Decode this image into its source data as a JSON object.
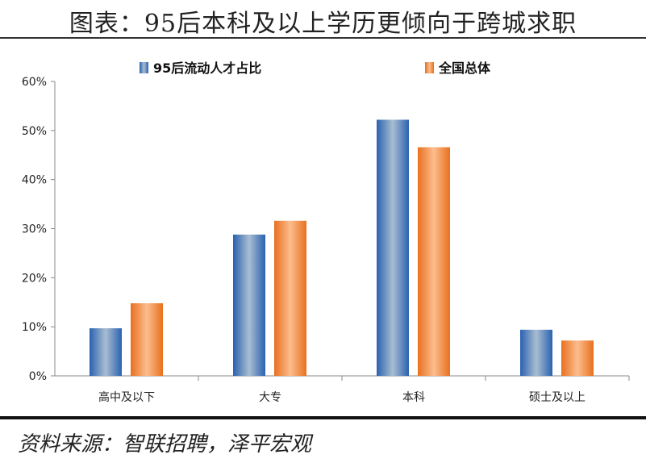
{
  "title": "图表：95后本科及以上学历更倾向于跨城求职",
  "source": "资料来源：智联招聘，泽平宏观",
  "chart_data": {
    "type": "bar",
    "categories": [
      "高中及以下",
      "大专",
      "本科",
      "硕士及以上"
    ],
    "series": [
      {
        "name": "95后流动人才占比",
        "values": [
          9.7,
          28.8,
          52.2,
          9.4
        ],
        "color": "#2a62b0"
      },
      {
        "name": "全国总体",
        "values": [
          14.8,
          31.6,
          46.6,
          7.2
        ],
        "color": "#e8701e"
      }
    ],
    "ylim": [
      0,
      60
    ],
    "yticks": [
      "0%",
      "10%",
      "20%",
      "30%",
      "40%",
      "50%",
      "60%"
    ],
    "ylabel": "",
    "xlabel": "",
    "legend": "top",
    "grid": false
  }
}
